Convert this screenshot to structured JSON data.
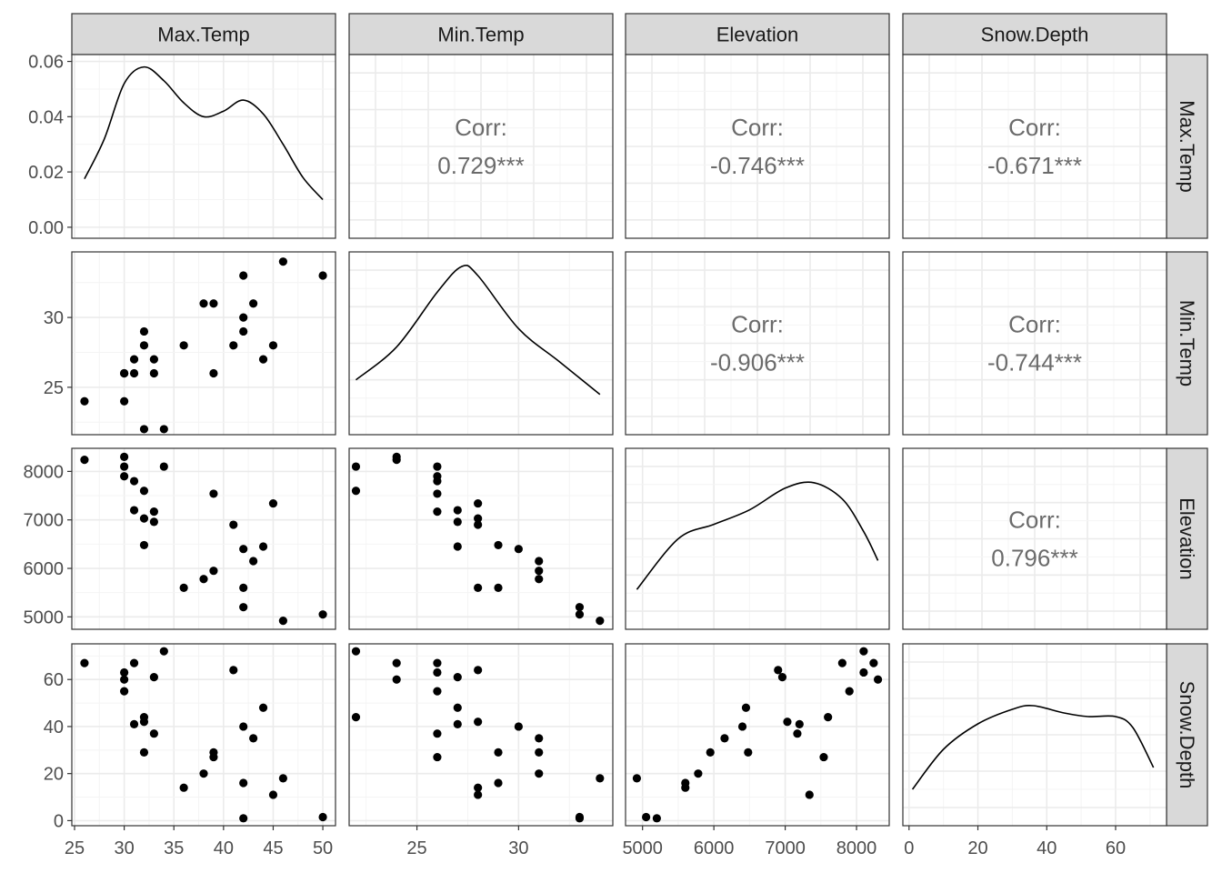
{
  "chart_data": {
    "type": "scatter",
    "layout": "pairs-matrix",
    "variables": [
      "Max.Temp",
      "Min.Temp",
      "Elevation",
      "Snow.Depth"
    ],
    "colors": {
      "strip_fill": "#d9d9d9",
      "panel_border": "#333333",
      "grid_major": "#ebebeb",
      "grid_minor": "#f4f4f4",
      "points": "#000000",
      "corr_text": "#6b6b6b",
      "tick_text": "#4d4d4d"
    },
    "axes": {
      "Max.Temp": {
        "range": [
          25,
          51
        ],
        "ticks": [
          25,
          30,
          35,
          40,
          45,
          50
        ],
        "tick_labels": [
          "25",
          "30",
          "35",
          "40",
          "45",
          "50"
        ]
      },
      "Min.Temp": {
        "range": [
          21.8,
          34.5
        ],
        "x_ticks": [
          25,
          30
        ],
        "x_tick_labels": [
          "25",
          "30"
        ],
        "y_ticks": [
          25,
          30
        ],
        "y_tick_labels": [
          "25",
          "30"
        ]
      },
      "Elevation": {
        "range": [
          4800,
          8420
        ],
        "ticks": [
          5000,
          6000,
          7000,
          8000
        ],
        "tick_labels": [
          "5000",
          "6000",
          "7000",
          "8000"
        ]
      },
      "Snow.Depth": {
        "range": [
          -1,
          74
        ],
        "ticks": [
          0,
          20,
          40,
          60
        ],
        "tick_labels": [
          "0",
          "20",
          "40",
          "60"
        ]
      }
    },
    "density_axis": {
      "range": [
        -0.003,
        0.0615
      ],
      "ticks": [
        0,
        0.02,
        0.04,
        0.06
      ],
      "tick_labels": [
        "0.00",
        "0.02",
        "0.04",
        "0.06"
      ]
    },
    "densities": {
      "Max.Temp": [
        [
          26,
          0.0175
        ],
        [
          28,
          0.032
        ],
        [
          30,
          0.052
        ],
        [
          32,
          0.058
        ],
        [
          34,
          0.053
        ],
        [
          36,
          0.045
        ],
        [
          38,
          0.04
        ],
        [
          40,
          0.042
        ],
        [
          42,
          0.046
        ],
        [
          44,
          0.041
        ],
        [
          46,
          0.03
        ],
        [
          48,
          0.018
        ],
        [
          50,
          0.01
        ]
      ],
      "Min.Temp": [
        [
          22,
          0.3
        ],
        [
          24,
          0.48
        ],
        [
          26,
          0.78
        ],
        [
          27.2,
          0.92
        ],
        [
          28,
          0.87
        ],
        [
          30,
          0.58
        ],
        [
          32,
          0.4
        ],
        [
          34,
          0.22
        ]
      ],
      "Elevation": [
        [
          4920,
          0.22
        ],
        [
          5500,
          0.5
        ],
        [
          6000,
          0.58
        ],
        [
          6500,
          0.66
        ],
        [
          7000,
          0.78
        ],
        [
          7400,
          0.81
        ],
        [
          7800,
          0.72
        ],
        [
          8100,
          0.54
        ],
        [
          8300,
          0.38
        ]
      ],
      "Snow.Depth": [
        [
          1,
          0.2
        ],
        [
          10,
          0.42
        ],
        [
          20,
          0.56
        ],
        [
          30,
          0.64
        ],
        [
          36,
          0.66
        ],
        [
          45,
          0.62
        ],
        [
          52,
          0.6
        ],
        [
          60,
          0.6
        ],
        [
          65,
          0.54
        ],
        [
          71,
          0.32
        ]
      ]
    },
    "correlations": [
      {
        "x": "Min.Temp",
        "y": "Max.Temp",
        "label": "Corr:",
        "value": "0.729***"
      },
      {
        "x": "Elevation",
        "y": "Max.Temp",
        "label": "Corr:",
        "value": "-0.746***"
      },
      {
        "x": "Snow.Depth",
        "y": "Max.Temp",
        "label": "Corr:",
        "value": "-0.671***"
      },
      {
        "x": "Elevation",
        "y": "Min.Temp",
        "label": "Corr:",
        "value": "-0.906***"
      },
      {
        "x": "Snow.Depth",
        "y": "Min.Temp",
        "label": "Corr:",
        "value": "-0.744***"
      },
      {
        "x": "Snow.Depth",
        "y": "Elevation",
        "label": "Corr:",
        "value": "0.796***"
      }
    ],
    "observations": [
      {
        "Max.Temp": 26,
        "Min.Temp": 24,
        "Elevation": 8240,
        "Snow.Depth": 67
      },
      {
        "Max.Temp": 30,
        "Min.Temp": 24,
        "Elevation": 8300,
        "Snow.Depth": 60
      },
      {
        "Max.Temp": 30,
        "Min.Temp": 26,
        "Elevation": 8100,
        "Snow.Depth": 63
      },
      {
        "Max.Temp": 30,
        "Min.Temp": 26,
        "Elevation": 7900,
        "Snow.Depth": 55
      },
      {
        "Max.Temp": 31,
        "Min.Temp": 26,
        "Elevation": 7800,
        "Snow.Depth": 67
      },
      {
        "Max.Temp": 31,
        "Min.Temp": 27,
        "Elevation": 7200,
        "Snow.Depth": 41
      },
      {
        "Max.Temp": 32,
        "Min.Temp": 22,
        "Elevation": 7600,
        "Snow.Depth": 44
      },
      {
        "Max.Temp": 32,
        "Min.Temp": 28,
        "Elevation": 7030,
        "Snow.Depth": 42
      },
      {
        "Max.Temp": 32,
        "Min.Temp": 29,
        "Elevation": 6480,
        "Snow.Depth": 29
      },
      {
        "Max.Temp": 33,
        "Min.Temp": 26,
        "Elevation": 7170,
        "Snow.Depth": 37
      },
      {
        "Max.Temp": 33,
        "Min.Temp": 27,
        "Elevation": 6960,
        "Snow.Depth": 61
      },
      {
        "Max.Temp": 34,
        "Min.Temp": 22,
        "Elevation": 8100,
        "Snow.Depth": 72
      },
      {
        "Max.Temp": 36,
        "Min.Temp": 28,
        "Elevation": 5600,
        "Snow.Depth": 14
      },
      {
        "Max.Temp": 38,
        "Min.Temp": 31,
        "Elevation": 5780,
        "Snow.Depth": 20
      },
      {
        "Max.Temp": 39,
        "Min.Temp": 31,
        "Elevation": 5950,
        "Snow.Depth": 29
      },
      {
        "Max.Temp": 39,
        "Min.Temp": 26,
        "Elevation": 7540,
        "Snow.Depth": 27
      },
      {
        "Max.Temp": 41,
        "Min.Temp": 28,
        "Elevation": 6900,
        "Snow.Depth": 64
      },
      {
        "Max.Temp": 42,
        "Min.Temp": 33,
        "Elevation": 5200,
        "Snow.Depth": 1
      },
      {
        "Max.Temp": 42,
        "Min.Temp": 30,
        "Elevation": 6400,
        "Snow.Depth": 40
      },
      {
        "Max.Temp": 42,
        "Min.Temp": 29,
        "Elevation": 5600,
        "Snow.Depth": 16
      },
      {
        "Max.Temp": 43,
        "Min.Temp": 31,
        "Elevation": 6150,
        "Snow.Depth": 35
      },
      {
        "Max.Temp": 44,
        "Min.Temp": 27,
        "Elevation": 6450,
        "Snow.Depth": 48
      },
      {
        "Max.Temp": 45,
        "Min.Temp": 28,
        "Elevation": 7340,
        "Snow.Depth": 11
      },
      {
        "Max.Temp": 46,
        "Min.Temp": 34,
        "Elevation": 4920,
        "Snow.Depth": 18
      },
      {
        "Max.Temp": 50,
        "Min.Temp": 33,
        "Elevation": 5050,
        "Snow.Depth": 1.5
      }
    ]
  }
}
